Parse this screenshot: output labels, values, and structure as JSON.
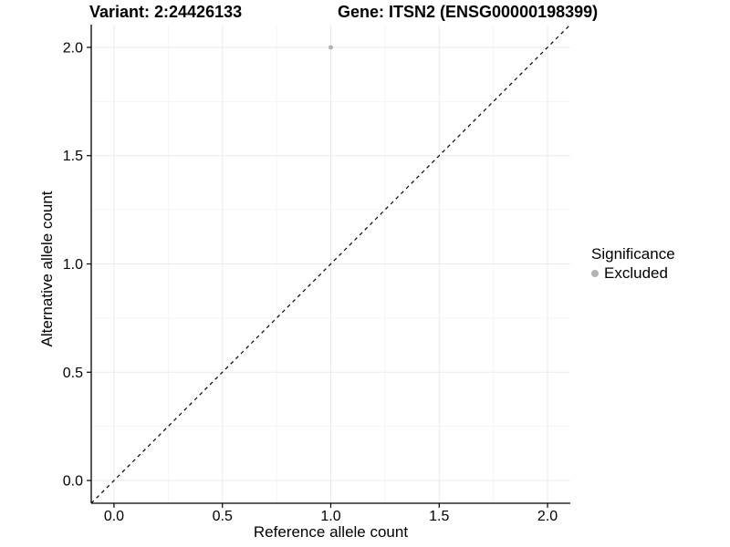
{
  "chart_data": {
    "type": "scatter",
    "title_left": "Variant: 2:24426133",
    "title_right": "Gene: ITSN2 (ENSG00000198399)",
    "xlabel": "Reference allele count",
    "ylabel": "Alternative allele count",
    "xlim": [
      -0.105,
      2.105
    ],
    "ylim": [
      -0.105,
      2.105
    ],
    "x_ticks": [
      0,
      0.5,
      1,
      1.5,
      2
    ],
    "x_tick_labels": [
      "0.0",
      "0.5",
      "1.0",
      "1.5",
      "2.0"
    ],
    "y_ticks": [
      0,
      0.5,
      1,
      1.5,
      2
    ],
    "y_tick_labels": [
      "0.0",
      "0.5",
      "1.0",
      "1.5",
      "2.0"
    ],
    "minor_ticks": [
      0.25,
      0.75,
      1.25,
      1.75
    ],
    "grid": "major+minor",
    "legend_position": "right",
    "series": [
      {
        "name": "Excluded",
        "color": "#b3b3b3",
        "points": [
          {
            "x": 1.0,
            "y": 2.0
          }
        ]
      }
    ],
    "reference_line": {
      "slope": 1,
      "intercept": 0,
      "style": "dashed",
      "color": "#000000"
    },
    "legend": {
      "title": "Significance",
      "items": [
        {
          "label": "Excluded",
          "color": "#b3b3b3",
          "marker": "circle"
        }
      ]
    }
  },
  "colors": {
    "background": "#ffffff",
    "grid_major": "#ebebeb",
    "grid_minor": "#f5f5f5",
    "axis_line": "#000000",
    "text": "#000000"
  }
}
